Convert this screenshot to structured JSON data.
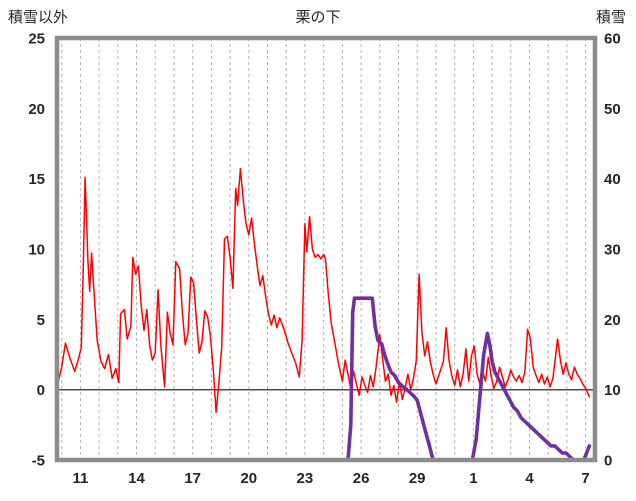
{
  "chart_data": {
    "type": "line",
    "title": "栗の下",
    "left_axis_title": "積雪以外",
    "right_axis_title": "積雪",
    "left_ylim": [
      -5,
      25
    ],
    "right_ylim": [
      0,
      60
    ],
    "left_yticks": [
      25,
      20,
      15,
      10,
      5,
      0,
      -5
    ],
    "right_yticks": [
      60,
      50,
      40,
      30,
      20,
      10,
      0
    ],
    "x_range": [
      9.75,
      38.5
    ],
    "x_ticks": [
      {
        "day": 11,
        "label": "11"
      },
      {
        "day": 14,
        "label": "14"
      },
      {
        "day": 17,
        "label": "17"
      },
      {
        "day": 20,
        "label": "20"
      },
      {
        "day": 23,
        "label": "23"
      },
      {
        "day": 26,
        "label": "26"
      },
      {
        "day": 29,
        "label": "29"
      },
      {
        "day": 32,
        "label": "1"
      },
      {
        "day": 35,
        "label": "4"
      },
      {
        "day": 38,
        "label": "7"
      }
    ],
    "grid": {
      "vertical_dashed_every_day": true,
      "horizontal": false
    },
    "colors": {
      "grid": "#b3b3b3",
      "border": "#8c8c8c",
      "zero_line": "#4d4d4d",
      "tick_text": "#262626",
      "red_series": "#ff0000",
      "purple_series": "#7030a0"
    },
    "series": [
      {
        "name": "積雪以外",
        "axis": "left",
        "color": "#ff0000",
        "width": 1.5,
        "points": [
          [
            9.75,
            0.2
          ],
          [
            10.0,
            1.6
          ],
          [
            10.2,
            3.3
          ],
          [
            10.45,
            2.2
          ],
          [
            10.7,
            1.3
          ],
          [
            10.9,
            2.2
          ],
          [
            11.05,
            3.0
          ],
          [
            11.15,
            8.5
          ],
          [
            11.25,
            15.1
          ],
          [
            11.4,
            9.2
          ],
          [
            11.5,
            7.0
          ],
          [
            11.6,
            9.7
          ],
          [
            11.75,
            6.5
          ],
          [
            11.9,
            3.5
          ],
          [
            12.1,
            2.0
          ],
          [
            12.3,
            1.5
          ],
          [
            12.5,
            2.5
          ],
          [
            12.7,
            0.8
          ],
          [
            12.9,
            1.5
          ],
          [
            13.05,
            0.5
          ],
          [
            13.15,
            5.4
          ],
          [
            13.35,
            5.7
          ],
          [
            13.5,
            3.6
          ],
          [
            13.7,
            4.5
          ],
          [
            13.8,
            9.4
          ],
          [
            13.95,
            8.2
          ],
          [
            14.1,
            8.8
          ],
          [
            14.25,
            6.0
          ],
          [
            14.4,
            4.2
          ],
          [
            14.55,
            5.7
          ],
          [
            14.7,
            3.2
          ],
          [
            14.85,
            2.1
          ],
          [
            15.0,
            2.6
          ],
          [
            15.15,
            7.1
          ],
          [
            15.3,
            3.1
          ],
          [
            15.5,
            0.2
          ],
          [
            15.65,
            5.5
          ],
          [
            15.8,
            4.0
          ],
          [
            15.95,
            3.2
          ],
          [
            16.1,
            9.1
          ],
          [
            16.3,
            8.6
          ],
          [
            16.45,
            5.5
          ],
          [
            16.6,
            3.2
          ],
          [
            16.75,
            4.0
          ],
          [
            16.9,
            8.0
          ],
          [
            17.05,
            7.6
          ],
          [
            17.2,
            5.0
          ],
          [
            17.35,
            2.6
          ],
          [
            17.5,
            3.4
          ],
          [
            17.65,
            5.6
          ],
          [
            17.8,
            5.2
          ],
          [
            17.95,
            3.8
          ],
          [
            18.1,
            1.4
          ],
          [
            18.25,
            -1.6
          ],
          [
            18.4,
            0.5
          ],
          [
            18.55,
            3.0
          ],
          [
            18.7,
            10.7
          ],
          [
            18.85,
            10.9
          ],
          [
            19.0,
            9.4
          ],
          [
            19.15,
            7.2
          ],
          [
            19.3,
            14.3
          ],
          [
            19.4,
            13.1
          ],
          [
            19.55,
            15.7
          ],
          [
            19.7,
            13.5
          ],
          [
            19.85,
            11.8
          ],
          [
            20.0,
            11.0
          ],
          [
            20.15,
            12.2
          ],
          [
            20.3,
            10.4
          ],
          [
            20.45,
            8.8
          ],
          [
            20.6,
            7.4
          ],
          [
            20.75,
            8.1
          ],
          [
            20.9,
            6.6
          ],
          [
            21.05,
            5.4
          ],
          [
            21.2,
            4.6
          ],
          [
            21.35,
            5.3
          ],
          [
            21.5,
            4.4
          ],
          [
            21.65,
            5.1
          ],
          [
            21.8,
            4.6
          ],
          [
            21.95,
            4.0
          ],
          [
            22.1,
            3.3
          ],
          [
            22.3,
            2.6
          ],
          [
            22.5,
            1.9
          ],
          [
            22.7,
            0.9
          ],
          [
            22.85,
            3.5
          ],
          [
            23.0,
            11.8
          ],
          [
            23.1,
            9.8
          ],
          [
            23.25,
            12.3
          ],
          [
            23.4,
            10.0
          ],
          [
            23.55,
            9.4
          ],
          [
            23.7,
            9.6
          ],
          [
            23.85,
            9.3
          ],
          [
            24.0,
            9.6
          ],
          [
            24.1,
            9.3
          ],
          [
            24.25,
            6.8
          ],
          [
            24.4,
            4.8
          ],
          [
            24.6,
            3.3
          ],
          [
            24.8,
            1.8
          ],
          [
            25.0,
            0.6
          ],
          [
            25.15,
            2.1
          ],
          [
            25.3,
            1.1
          ],
          [
            25.45,
            0.1
          ],
          [
            25.6,
            1.3
          ],
          [
            25.75,
            0.4
          ],
          [
            25.9,
            -0.4
          ],
          [
            26.05,
            0.9
          ],
          [
            26.2,
            0.3
          ],
          [
            26.35,
            -0.2
          ],
          [
            26.5,
            1.0
          ],
          [
            26.65,
            0.2
          ],
          [
            26.8,
            1.6
          ],
          [
            27.0,
            3.9
          ],
          [
            27.15,
            2.2
          ],
          [
            27.3,
            0.6
          ],
          [
            27.45,
            1.1
          ],
          [
            27.6,
            -0.4
          ],
          [
            27.75,
            0.3
          ],
          [
            27.9,
            -0.9
          ],
          [
            28.05,
            0.6
          ],
          [
            28.2,
            -0.7
          ],
          [
            28.35,
            0.1
          ],
          [
            28.5,
            1.1
          ],
          [
            28.65,
            0.0
          ],
          [
            28.8,
            0.8
          ],
          [
            28.95,
            2.1
          ],
          [
            29.1,
            8.2
          ],
          [
            29.25,
            4.1
          ],
          [
            29.4,
            2.4
          ],
          [
            29.55,
            3.4
          ],
          [
            29.7,
            2.0
          ],
          [
            29.85,
            1.1
          ],
          [
            30.0,
            0.4
          ],
          [
            30.2,
            1.2
          ],
          [
            30.4,
            2.0
          ],
          [
            30.55,
            4.4
          ],
          [
            30.7,
            2.1
          ],
          [
            30.85,
            1.0
          ],
          [
            31.0,
            0.3
          ],
          [
            31.15,
            1.4
          ],
          [
            31.3,
            0.2
          ],
          [
            31.45,
            1.1
          ],
          [
            31.6,
            2.9
          ],
          [
            31.75,
            0.6
          ],
          [
            31.9,
            2.4
          ],
          [
            32.05,
            3.1
          ],
          [
            32.2,
            1.1
          ],
          [
            32.35,
            0.4
          ],
          [
            32.5,
            1.3
          ],
          [
            32.65,
            0.6
          ],
          [
            32.8,
            2.3
          ],
          [
            32.95,
            1.0
          ],
          [
            33.1,
            0.1
          ],
          [
            33.25,
            0.6
          ],
          [
            33.4,
            1.6
          ],
          [
            33.55,
            0.9
          ],
          [
            33.7,
            0.2
          ],
          [
            33.85,
            0.7
          ],
          [
            34.0,
            1.4
          ],
          [
            34.15,
            0.9
          ],
          [
            34.3,
            0.6
          ],
          [
            34.45,
            1.0
          ],
          [
            34.6,
            0.5
          ],
          [
            34.75,
            1.2
          ],
          [
            34.9,
            4.3
          ],
          [
            35.05,
            3.6
          ],
          [
            35.2,
            1.6
          ],
          [
            35.35,
            1.0
          ],
          [
            35.5,
            0.5
          ],
          [
            35.65,
            1.1
          ],
          [
            35.8,
            0.4
          ],
          [
            35.95,
            0.9
          ],
          [
            36.1,
            0.2
          ],
          [
            36.25,
            0.8
          ],
          [
            36.5,
            3.6
          ],
          [
            36.65,
            2.1
          ],
          [
            36.8,
            1.1
          ],
          [
            36.95,
            1.9
          ],
          [
            37.1,
            1.1
          ],
          [
            37.25,
            0.7
          ],
          [
            37.4,
            1.6
          ],
          [
            37.55,
            1.1
          ],
          [
            37.7,
            0.8
          ],
          [
            37.85,
            0.4
          ],
          [
            38.0,
            0.1
          ],
          [
            38.2,
            -0.5
          ]
        ]
      },
      {
        "name": "積雪",
        "axis": "right",
        "color": "#7030a0",
        "width": 3.6,
        "points": [
          [
            9.75,
            0
          ],
          [
            25.3,
            0
          ],
          [
            25.45,
            5
          ],
          [
            25.55,
            21
          ],
          [
            25.65,
            23
          ],
          [
            26.6,
            23
          ],
          [
            26.75,
            19
          ],
          [
            26.9,
            17
          ],
          [
            27.1,
            16.5
          ],
          [
            27.25,
            15
          ],
          [
            27.45,
            13.5
          ],
          [
            27.6,
            12.5
          ],
          [
            27.8,
            12
          ],
          [
            28.0,
            11
          ],
          [
            28.2,
            10.5
          ],
          [
            28.45,
            10
          ],
          [
            28.65,
            9.5
          ],
          [
            28.85,
            9
          ],
          [
            29.0,
            8.5
          ],
          [
            29.15,
            7
          ],
          [
            29.3,
            5.5
          ],
          [
            29.45,
            4
          ],
          [
            29.6,
            2.5
          ],
          [
            29.75,
            1
          ],
          [
            29.85,
            0
          ],
          [
            31.95,
            0
          ],
          [
            32.15,
            3
          ],
          [
            32.35,
            9
          ],
          [
            32.55,
            15
          ],
          [
            32.75,
            18
          ],
          [
            32.9,
            16
          ],
          [
            33.0,
            14
          ],
          [
            33.15,
            12.5
          ],
          [
            33.35,
            11.5
          ],
          [
            33.55,
            10.5
          ],
          [
            33.75,
            9.5
          ],
          [
            33.95,
            8.5
          ],
          [
            34.15,
            7.5
          ],
          [
            34.35,
            7
          ],
          [
            34.55,
            6
          ],
          [
            34.75,
            5.5
          ],
          [
            34.95,
            5
          ],
          [
            35.15,
            4.5
          ],
          [
            35.35,
            4
          ],
          [
            35.55,
            3.5
          ],
          [
            35.75,
            3
          ],
          [
            35.95,
            2.5
          ],
          [
            36.15,
            2
          ],
          [
            36.35,
            2
          ],
          [
            36.55,
            1.5
          ],
          [
            36.75,
            1
          ],
          [
            36.95,
            1
          ],
          [
            37.15,
            0.5
          ],
          [
            37.35,
            0
          ],
          [
            37.9,
            0
          ],
          [
            38.05,
            1
          ],
          [
            38.2,
            2
          ]
        ]
      }
    ]
  }
}
